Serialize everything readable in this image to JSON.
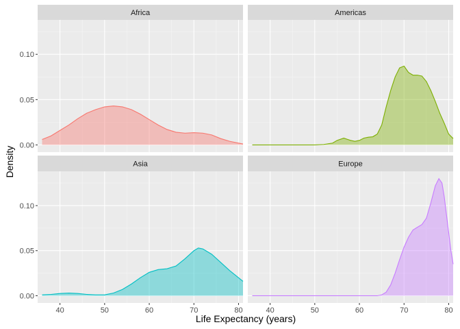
{
  "chart_data": {
    "type": "area",
    "xlabel": "Life Expectancy (years)",
    "ylabel": "Density",
    "xlim": [
      35,
      81
    ],
    "ylim": [
      -0.008,
      0.138
    ],
    "x_ticks": [
      40,
      50,
      60,
      70,
      80
    ],
    "y_ticks": [
      0.0,
      0.05,
      0.1
    ],
    "y_tick_labels": [
      "0.00",
      "0.05",
      "0.10"
    ],
    "grid": true,
    "panels": [
      {
        "name": "Africa",
        "color": "#F8766D",
        "fill": "#F8766D",
        "points": [
          [
            36,
            0.006
          ],
          [
            38,
            0.01
          ],
          [
            40,
            0.016
          ],
          [
            42,
            0.022
          ],
          [
            44,
            0.029
          ],
          [
            46,
            0.035
          ],
          [
            48,
            0.039
          ],
          [
            50,
            0.042
          ],
          [
            52,
            0.043
          ],
          [
            54,
            0.042
          ],
          [
            56,
            0.039
          ],
          [
            58,
            0.034
          ],
          [
            60,
            0.028
          ],
          [
            62,
            0.022
          ],
          [
            64,
            0.017
          ],
          [
            66,
            0.014
          ],
          [
            68,
            0.013
          ],
          [
            70,
            0.0135
          ],
          [
            72,
            0.013
          ],
          [
            74,
            0.011
          ],
          [
            76,
            0.007
          ],
          [
            78,
            0.004
          ],
          [
            80,
            0.002
          ],
          [
            81,
            0.001
          ]
        ]
      },
      {
        "name": "Americas",
        "color": "#7CAE00",
        "fill": "#7CAE00",
        "points": [
          [
            36,
            0.0
          ],
          [
            44,
            0.0
          ],
          [
            50,
            0.0
          ],
          [
            52,
            0.0005
          ],
          [
            54,
            0.002
          ],
          [
            55,
            0.005
          ],
          [
            56.5,
            0.0075
          ],
          [
            58,
            0.005
          ],
          [
            59,
            0.004
          ],
          [
            60,
            0.005
          ],
          [
            61,
            0.0075
          ],
          [
            62,
            0.0085
          ],
          [
            63,
            0.009
          ],
          [
            64,
            0.012
          ],
          [
            65,
            0.022
          ],
          [
            66,
            0.042
          ],
          [
            67,
            0.06
          ],
          [
            68,
            0.075
          ],
          [
            69,
            0.085
          ],
          [
            70,
            0.087
          ],
          [
            71,
            0.08
          ],
          [
            72,
            0.077
          ],
          [
            73,
            0.077
          ],
          [
            74,
            0.076
          ],
          [
            75,
            0.07
          ],
          [
            76,
            0.06
          ],
          [
            77,
            0.048
          ],
          [
            78,
            0.035
          ],
          [
            79,
            0.024
          ],
          [
            80,
            0.012
          ],
          [
            81,
            0.007
          ]
        ]
      },
      {
        "name": "Asia",
        "color": "#00BFC4",
        "fill": "#00BFC4",
        "points": [
          [
            36,
            0.001
          ],
          [
            38,
            0.0015
          ],
          [
            40,
            0.0025
          ],
          [
            42,
            0.003
          ],
          [
            44,
            0.0025
          ],
          [
            46,
            0.0015
          ],
          [
            48,
            0.001
          ],
          [
            50,
            0.001
          ],
          [
            52,
            0.003
          ],
          [
            54,
            0.007
          ],
          [
            56,
            0.013
          ],
          [
            58,
            0.02
          ],
          [
            60,
            0.026
          ],
          [
            62,
            0.029
          ],
          [
            64,
            0.03
          ],
          [
            66,
            0.033
          ],
          [
            68,
            0.041
          ],
          [
            70,
            0.05
          ],
          [
            71,
            0.053
          ],
          [
            72,
            0.052
          ],
          [
            74,
            0.046
          ],
          [
            76,
            0.037
          ],
          [
            78,
            0.028
          ],
          [
            80,
            0.02
          ],
          [
            81,
            0.016
          ]
        ]
      },
      {
        "name": "Europe",
        "color": "#C77CFF",
        "fill": "#C77CFF",
        "points": [
          [
            36,
            0.0
          ],
          [
            50,
            0.0
          ],
          [
            60,
            0.0
          ],
          [
            64,
            0.0
          ],
          [
            65,
            0.001
          ],
          [
            66,
            0.004
          ],
          [
            67,
            0.012
          ],
          [
            68,
            0.025
          ],
          [
            69,
            0.04
          ],
          [
            70,
            0.054
          ],
          [
            71,
            0.065
          ],
          [
            72,
            0.073
          ],
          [
            73,
            0.076
          ],
          [
            74,
            0.079
          ],
          [
            75,
            0.086
          ],
          [
            76,
            0.103
          ],
          [
            77,
            0.122
          ],
          [
            77.8,
            0.13
          ],
          [
            78.5,
            0.125
          ],
          [
            79,
            0.11
          ],
          [
            79.5,
            0.09
          ],
          [
            80,
            0.07
          ],
          [
            80.5,
            0.05
          ],
          [
            81,
            0.035
          ]
        ]
      }
    ]
  }
}
